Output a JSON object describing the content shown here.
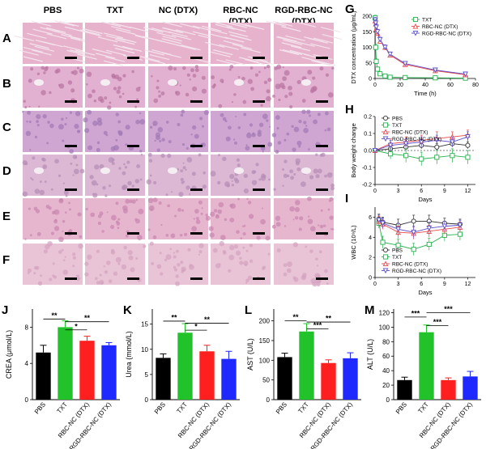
{
  "histology": {
    "columns": [
      "PBS",
      "TXT",
      "NC (DTX)",
      "RBC-NC\n(DTX)",
      "RGD-RBC-NC\n(DTX)"
    ],
    "rows": [
      "A",
      "B",
      "C",
      "D",
      "E",
      "F"
    ],
    "tissue_colors": [
      "#e7b3cc",
      "#e2b0d0",
      "#cfa6d2",
      "#dcb8d4",
      "#e6b6cf",
      "#e9c3d6"
    ],
    "accent_colors": [
      "#c777a5",
      "#b8749f",
      "#9f78b4",
      "#b58bb5",
      "#c785ad",
      "#d3a3bf"
    ]
  },
  "chart_data": [
    {
      "panel": "G",
      "type": "line",
      "xlabel": "Time (h)",
      "ylabel": "DTX concentration (μg/mL)",
      "xlim": [
        0,
        80
      ],
      "ylim": [
        0,
        200
      ],
      "xticks": [
        0,
        20,
        40,
        60,
        80
      ],
      "yticks": [
        0,
        50,
        100,
        150,
        200
      ],
      "legend": "top-right",
      "series": [
        {
          "name": "TXT",
          "color": "#22b14c",
          "marker": "square",
          "x": [
            0.1,
            0.5,
            1,
            2,
            4,
            8,
            12,
            24,
            48,
            72
          ],
          "y": [
            195,
            100,
            55,
            30,
            15,
            8,
            4,
            3,
            2,
            1
          ],
          "err": [
            8,
            10,
            8,
            6,
            4,
            2,
            1,
            1,
            1,
            0
          ]
        },
        {
          "name": "RBC-NC (DTX)",
          "color": "#e8474b",
          "marker": "triangle",
          "x": [
            0.1,
            0.5,
            1,
            2,
            4,
            8,
            12,
            24,
            48,
            72
          ],
          "y": [
            185,
            175,
            160,
            145,
            120,
            100,
            75,
            45,
            25,
            12
          ],
          "err": [
            8,
            10,
            10,
            8,
            8,
            8,
            6,
            4,
            3,
            2
          ]
        },
        {
          "name": "RGD-RBC-NC (DTX)",
          "color": "#5a4ec9",
          "marker": "triangle-down",
          "x": [
            0.1,
            0.5,
            1,
            2,
            4,
            8,
            12,
            24,
            48,
            72
          ],
          "y": [
            188,
            178,
            165,
            150,
            125,
            100,
            78,
            48,
            27,
            14
          ],
          "err": [
            8,
            10,
            10,
            8,
            8,
            8,
            6,
            4,
            3,
            2
          ]
        }
      ]
    },
    {
      "panel": "H",
      "type": "line",
      "xlabel": "Days",
      "ylabel": "Body weight change",
      "xlim": [
        0,
        13
      ],
      "ylim": [
        -0.2,
        0.2
      ],
      "xticks": [
        0,
        3,
        6,
        9,
        12
      ],
      "yticks": [
        -0.2,
        -0.1,
        0.0,
        0.1,
        0.2
      ],
      "legend": "top-left",
      "series": [
        {
          "name": "PBS",
          "color": "#333333",
          "marker": "circle",
          "x": [
            0,
            2,
            4,
            6,
            8,
            10,
            12
          ],
          "y": [
            0,
            0.01,
            0.02,
            0.03,
            0.02,
            0.04,
            0.03
          ],
          "err": [
            0,
            0.02,
            0.02,
            0.02,
            0.02,
            0.02,
            0.02
          ]
        },
        {
          "name": "TXT",
          "color": "#22b14c",
          "marker": "square",
          "x": [
            0,
            2,
            4,
            6,
            8,
            10,
            12
          ],
          "y": [
            0,
            -0.02,
            -0.03,
            -0.05,
            -0.04,
            -0.03,
            -0.04
          ],
          "err": [
            0,
            0.03,
            0.04,
            0.04,
            0.04,
            0.04,
            0.04
          ]
        },
        {
          "name": "RBC-NC (DTX)",
          "color": "#e8474b",
          "marker": "triangle",
          "x": [
            0,
            2,
            4,
            6,
            8,
            10,
            12
          ],
          "y": [
            0,
            0.04,
            0.05,
            0.06,
            0.07,
            0.08,
            0.09
          ],
          "err": [
            0,
            0.03,
            0.03,
            0.03,
            0.04,
            0.03,
            0.03
          ]
        },
        {
          "name": "RGD-RBC-NC (DTX)",
          "color": "#5a4ec9",
          "marker": "triangle-down",
          "x": [
            0,
            2,
            4,
            6,
            8,
            10,
            12
          ],
          "y": [
            0,
            0.03,
            0.04,
            0.05,
            0.06,
            0.05,
            0.08
          ],
          "err": [
            0,
            0.03,
            0.03,
            0.03,
            0.03,
            0.03,
            0.03
          ]
        }
      ]
    },
    {
      "panel": "I",
      "type": "line",
      "xlabel": "Days",
      "ylabel": "WBC (10⁹/L)",
      "xlim": [
        0,
        13
      ],
      "ylim": [
        0,
        7
      ],
      "xticks": [
        0,
        3,
        6,
        9,
        12
      ],
      "yticks": [
        0,
        2,
        4,
        6
      ],
      "legend": "bottom-left",
      "series": [
        {
          "name": "PBS",
          "color": "#333333",
          "marker": "circle",
          "x": [
            0.5,
            1,
            3,
            5,
            7,
            9,
            11
          ],
          "y": [
            5.8,
            5.5,
            5.2,
            5.6,
            5.6,
            5.4,
            5.3
          ],
          "err": [
            0.5,
            0.5,
            0.6,
            0.6,
            0.6,
            0.5,
            0.5
          ]
        },
        {
          "name": "TXT",
          "color": "#22b14c",
          "marker": "square",
          "x": [
            0.5,
            1,
            3,
            5,
            7,
            9,
            11
          ],
          "y": [
            5.4,
            3.5,
            3.2,
            2.8,
            3.3,
            4.2,
            4.3
          ],
          "err": [
            0.5,
            0.6,
            0.6,
            0.6,
            0.6,
            0.6,
            0.6
          ]
        },
        {
          "name": "RBC-NC (DTX)",
          "color": "#e8474b",
          "marker": "triangle",
          "x": [
            0.5,
            1,
            3,
            5,
            7,
            9,
            11
          ],
          "y": [
            5.6,
            5.3,
            4.5,
            4.4,
            4.6,
            4.8,
            5.0
          ],
          "err": [
            0.5,
            0.5,
            0.6,
            0.6,
            0.6,
            0.5,
            0.5
          ]
        },
        {
          "name": "RGD-RBC-NC (DTX)",
          "color": "#5a4ec9",
          "marker": "triangle-down",
          "x": [
            0.5,
            1,
            3,
            5,
            7,
            9,
            11
          ],
          "y": [
            5.7,
            5.4,
            4.8,
            4.5,
            4.9,
            5.1,
            5.2
          ],
          "err": [
            0.5,
            0.5,
            0.6,
            0.6,
            0.6,
            0.5,
            0.5
          ]
        }
      ]
    },
    {
      "panel": "J",
      "type": "bar",
      "ylabel": "CREA (μmol/L)",
      "ylim": [
        0,
        10
      ],
      "yticks": [
        0,
        4,
        8
      ],
      "categories": [
        "PBS",
        "TXT",
        "RBC-NC (DTX)",
        "RGD-RBC-NC (DTX)"
      ],
      "values": [
        5.2,
        8.0,
        6.5,
        6.0
      ],
      "errors": [
        0.8,
        0.7,
        0.5,
        0.3
      ],
      "colors": [
        "#000000",
        "#22c32a",
        "#ff1f1f",
        "#1f28ff"
      ],
      "significance": [
        {
          "from": 0,
          "to": 1,
          "label": "**",
          "y": 8.9
        },
        {
          "from": 1,
          "to": 2,
          "label": "*",
          "y": 7.7
        },
        {
          "from": 1,
          "to": 3,
          "label": "**",
          "y": 8.6
        }
      ]
    },
    {
      "panel": "K",
      "type": "bar",
      "ylabel": "Urea (mmol/L)",
      "ylim": [
        0,
        18
      ],
      "yticks": [
        0,
        5,
        10,
        15
      ],
      "categories": [
        "PBS",
        "TXT",
        "RBC-NC (DTX)",
        "RGD-RBC-NC (DTX)"
      ],
      "values": [
        8.3,
        13.3,
        9.6,
        8.1
      ],
      "errors": [
        0.8,
        1.8,
        1.2,
        1.5
      ],
      "colors": [
        "#000000",
        "#22c32a",
        "#ff1f1f",
        "#1f28ff"
      ],
      "significance": [
        {
          "from": 0,
          "to": 1,
          "label": "**",
          "y": 15.6
        },
        {
          "from": 1,
          "to": 2,
          "label": "*",
          "y": 13.8
        },
        {
          "from": 1,
          "to": 3,
          "label": "**",
          "y": 15.2
        }
      ]
    },
    {
      "panel": "L",
      "type": "bar",
      "ylabel": "AST (U/L)",
      "ylim": [
        0,
        230
      ],
      "yticks": [
        0,
        50,
        100,
        150,
        200
      ],
      "categories": [
        "PBS",
        "TXT",
        "RBC-NC (DTX)",
        "RGD-RBC-NC (DTX)"
      ],
      "values": [
        108,
        173,
        93,
        105
      ],
      "errors": [
        10,
        20,
        8,
        14
      ],
      "colors": [
        "#000000",
        "#22c32a",
        "#ff1f1f",
        "#1f28ff"
      ],
      "significance": [
        {
          "from": 0,
          "to": 1,
          "label": "**",
          "y": 200
        },
        {
          "from": 1,
          "to": 2,
          "label": "***",
          "y": 180
        },
        {
          "from": 1,
          "to": 3,
          "label": "**",
          "y": 197
        }
      ]
    },
    {
      "panel": "M",
      "type": "bar",
      "ylabel": "ALT (U/L)",
      "ylim": [
        0,
        125
      ],
      "yticks": [
        0,
        20,
        40,
        60,
        80,
        100,
        120
      ],
      "categories": [
        "PBS",
        "TXT",
        "RBC-NC (DTX)",
        "RGD-RBC-NC (DTX)"
      ],
      "values": [
        27,
        93,
        27,
        32
      ],
      "errors": [
        4,
        10,
        3,
        7
      ],
      "colors": [
        "#000000",
        "#22c32a",
        "#ff1f1f",
        "#1f28ff"
      ],
      "significance": [
        {
          "from": 0,
          "to": 1,
          "label": "***",
          "y": 114
        },
        {
          "from": 1,
          "to": 2,
          "label": "***",
          "y": 102
        },
        {
          "from": 1,
          "to": 3,
          "label": "***",
          "y": 120
        }
      ]
    }
  ]
}
